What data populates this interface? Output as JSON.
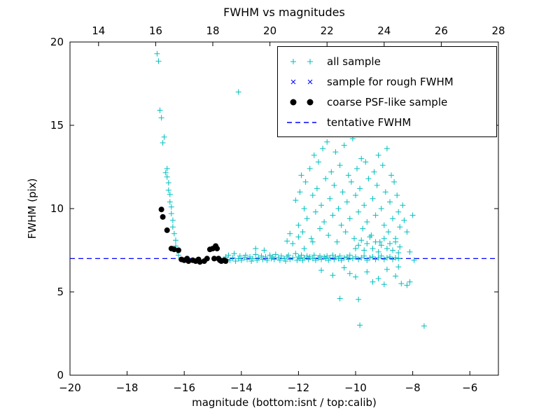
{
  "title": "FWHM vs magnitudes",
  "xlabel": "magnitude (bottom:isnt / top:calib)",
  "ylabel": "FWHM (pix)",
  "colors": {
    "cyan": "#00bfbf",
    "blue": "#0000ff",
    "black": "#000000",
    "frame": "#000000"
  },
  "legend": {
    "items": [
      {
        "label": "all sample",
        "marker": "plus",
        "color": "#00bfbf"
      },
      {
        "label": "sample for rough FWHM",
        "marker": "x",
        "color": "#0000ff"
      },
      {
        "label": "coarse PSF-like sample",
        "marker": "dot",
        "color": "#000000"
      },
      {
        "label": "tentative FWHM",
        "marker": "dashed-line",
        "color": "#0000ff"
      }
    ]
  },
  "chart_data": {
    "type": "scatter",
    "title": "FWHM vs magnitudes",
    "xlabel": "magnitude (bottom:isnt / top:calib)",
    "ylabel": "FWHM (pix)",
    "xlim": [
      -20,
      -5
    ],
    "ylim": [
      0,
      20
    ],
    "top_xlim": [
      13,
      28
    ],
    "x_ticks": [
      -20,
      -18,
      -16,
      -14,
      -12,
      -10,
      -8,
      -6
    ],
    "top_x_ticks": [
      14,
      16,
      18,
      20,
      22,
      24,
      26,
      28
    ],
    "y_ticks": [
      0,
      5,
      10,
      15,
      20
    ],
    "tentative_fwhm": 7.0,
    "grid": false,
    "legend_position": "upper right",
    "series": [
      {
        "name": "all sample",
        "marker": "+",
        "color": "#00bfbf",
        "points": [
          [
            -16.95,
            19.3
          ],
          [
            -16.9,
            18.85
          ],
          [
            -16.85,
            15.9
          ],
          [
            -16.8,
            15.45
          ],
          [
            -16.75,
            13.95
          ],
          [
            -16.7,
            14.3
          ],
          [
            -16.65,
            12.15
          ],
          [
            -16.6,
            12.4
          ],
          [
            -16.6,
            11.9
          ],
          [
            -16.55,
            11.55
          ],
          [
            -16.55,
            11.1
          ],
          [
            -16.5,
            10.85
          ],
          [
            -16.5,
            10.4
          ],
          [
            -16.45,
            10.1
          ],
          [
            -16.45,
            9.7
          ],
          [
            -16.4,
            9.3
          ],
          [
            -16.4,
            8.9
          ],
          [
            -16.35,
            8.5
          ],
          [
            -16.3,
            8.1
          ],
          [
            -16.3,
            7.75
          ],
          [
            -16.25,
            7.45
          ],
          [
            -16.2,
            7.2
          ],
          [
            -14.1,
            17.0
          ],
          [
            -14.55,
            7.1
          ],
          [
            -14.5,
            6.95
          ],
          [
            -14.45,
            7.2
          ],
          [
            -14.4,
            6.9
          ],
          [
            -14.3,
            7.05
          ],
          [
            -14.25,
            7.3
          ],
          [
            -14.2,
            6.85
          ],
          [
            -14.1,
            7.0
          ],
          [
            -14.05,
            7.15
          ],
          [
            -14.0,
            6.9
          ],
          [
            -13.9,
            7.05
          ],
          [
            -13.85,
            7.2
          ],
          [
            -13.8,
            6.95
          ],
          [
            -13.7,
            7.1
          ],
          [
            -13.65,
            6.85
          ],
          [
            -13.6,
            7.0
          ],
          [
            -13.5,
            7.6
          ],
          [
            -13.5,
            7.25
          ],
          [
            -13.45,
            6.9
          ],
          [
            -13.4,
            7.05
          ],
          [
            -13.3,
            7.15
          ],
          [
            -13.25,
            6.95
          ],
          [
            -13.2,
            7.5
          ],
          [
            -13.15,
            7.1
          ],
          [
            -13.1,
            6.9
          ],
          [
            -13.0,
            7.2
          ],
          [
            -12.95,
            7.0
          ],
          [
            -12.9,
            7.1
          ],
          [
            -12.85,
            6.95
          ],
          [
            -12.8,
            7.25
          ],
          [
            -12.7,
            7.05
          ],
          [
            -12.65,
            6.9
          ],
          [
            -12.6,
            7.15
          ],
          [
            -12.5,
            7.0
          ],
          [
            -12.45,
            6.85
          ],
          [
            -12.4,
            7.1
          ],
          [
            -12.35,
            7.2
          ],
          [
            -12.3,
            6.95
          ],
          [
            -12.2,
            7.9
          ],
          [
            -12.2,
            7.05
          ],
          [
            -12.1,
            7.3
          ],
          [
            -12.05,
            6.9
          ],
          [
            -12.0,
            8.3
          ],
          [
            -12.0,
            7.1
          ],
          [
            -11.95,
            7.0
          ],
          [
            -11.9,
            7.2
          ],
          [
            -11.85,
            6.9
          ],
          [
            -11.8,
            7.6
          ],
          [
            -11.8,
            7.05
          ],
          [
            -11.7,
            7.15
          ],
          [
            -11.65,
            6.95
          ],
          [
            -11.6,
            7.1
          ],
          [
            -11.5,
            8.0
          ],
          [
            -11.5,
            7.0
          ],
          [
            -11.45,
            7.2
          ],
          [
            -11.4,
            6.9
          ],
          [
            -11.3,
            7.05
          ],
          [
            -11.25,
            7.15
          ],
          [
            -11.2,
            6.95
          ],
          [
            -11.1,
            7.1
          ],
          [
            -11.05,
            7.0
          ],
          [
            -11.0,
            7.15
          ],
          [
            -10.95,
            6.9
          ],
          [
            -10.9,
            7.05
          ],
          [
            -10.8,
            7.2
          ],
          [
            -10.75,
            6.95
          ],
          [
            -10.7,
            7.1
          ],
          [
            -10.6,
            7.0
          ],
          [
            -10.55,
            7.15
          ],
          [
            -10.5,
            6.9
          ],
          [
            -10.4,
            7.05
          ],
          [
            -10.3,
            7.1
          ],
          [
            -10.25,
            6.95
          ],
          [
            -10.2,
            7.2
          ],
          [
            -10.1,
            7.0
          ],
          [
            -10.0,
            7.1
          ],
          [
            -9.9,
            6.95
          ],
          [
            -9.8,
            7.05
          ],
          [
            -9.7,
            7.15
          ],
          [
            -9.6,
            6.9
          ],
          [
            -9.5,
            7.05
          ],
          [
            -9.4,
            7.1
          ],
          [
            -9.3,
            6.95
          ],
          [
            -9.2,
            7.05
          ],
          [
            -9.1,
            7.15
          ],
          [
            -9.0,
            6.95
          ],
          [
            -8.9,
            7.05
          ],
          [
            -8.8,
            7.1
          ],
          [
            -8.7,
            6.95
          ],
          [
            -8.6,
            7.05
          ],
          [
            -8.5,
            7.0
          ],
          [
            -12.4,
            8.05
          ],
          [
            -12.3,
            8.5
          ],
          [
            -12.1,
            10.5
          ],
          [
            -12.0,
            9.0
          ],
          [
            -11.95,
            11.0
          ],
          [
            -11.9,
            12.0
          ],
          [
            -11.85,
            8.6
          ],
          [
            -11.8,
            10.0
          ],
          [
            -11.75,
            11.6
          ],
          [
            -11.7,
            9.4
          ],
          [
            -11.6,
            12.4
          ],
          [
            -11.55,
            8.2
          ],
          [
            -11.5,
            10.8
          ],
          [
            -11.45,
            13.2
          ],
          [
            -11.4,
            9.8
          ],
          [
            -11.35,
            11.2
          ],
          [
            -11.3,
            12.8
          ],
          [
            -11.25,
            8.8
          ],
          [
            -11.2,
            10.2
          ],
          [
            -11.15,
            13.6
          ],
          [
            -11.1,
            9.2
          ],
          [
            -11.05,
            11.8
          ],
          [
            -11.0,
            14.0
          ],
          [
            -10.95,
            8.4
          ],
          [
            -10.9,
            10.6
          ],
          [
            -10.85,
            12.2
          ],
          [
            -10.8,
            9.6
          ],
          [
            -10.75,
            11.4
          ],
          [
            -10.7,
            13.4
          ],
          [
            -10.65,
            8.0
          ],
          [
            -10.6,
            10.0
          ],
          [
            -10.55,
            12.6
          ],
          [
            -10.5,
            9.0
          ],
          [
            -10.45,
            11.0
          ],
          [
            -10.4,
            13.8
          ],
          [
            -10.35,
            8.6
          ],
          [
            -10.3,
            10.4
          ],
          [
            -10.25,
            12.0
          ],
          [
            -10.2,
            9.4
          ],
          [
            -10.15,
            11.6
          ],
          [
            -10.1,
            14.2
          ],
          [
            -10.05,
            8.2
          ],
          [
            -10.0,
            10.8
          ],
          [
            -9.95,
            12.4
          ],
          [
            -9.9,
            9.8
          ],
          [
            -9.85,
            11.2
          ],
          [
            -9.8,
            13.0
          ],
          [
            -9.75,
            8.8
          ],
          [
            -9.7,
            10.2
          ],
          [
            -9.65,
            12.8
          ],
          [
            -9.6,
            9.2
          ],
          [
            -9.55,
            11.8
          ],
          [
            -9.5,
            14.45
          ],
          [
            -9.45,
            8.4
          ],
          [
            -9.4,
            10.6
          ],
          [
            -9.35,
            12.2
          ],
          [
            -9.3,
            9.6
          ],
          [
            -9.25,
            11.4
          ],
          [
            -9.2,
            13.2
          ],
          [
            -9.15,
            8.0
          ],
          [
            -9.1,
            10.0
          ],
          [
            -9.05,
            12.6
          ],
          [
            -9.0,
            9.0
          ],
          [
            -8.95,
            11.0
          ],
          [
            -8.9,
            13.6
          ],
          [
            -8.85,
            8.6
          ],
          [
            -8.8,
            10.4
          ],
          [
            -8.75,
            12.0
          ],
          [
            -8.7,
            9.4
          ],
          [
            -8.65,
            11.6
          ],
          [
            -8.6,
            8.2
          ],
          [
            -8.55,
            10.8
          ],
          [
            -8.5,
            9.8
          ],
          [
            -8.45,
            8.9
          ],
          [
            -10.0,
            7.6
          ],
          [
            -9.9,
            7.8
          ],
          [
            -9.8,
            8.1
          ],
          [
            -9.7,
            7.5
          ],
          [
            -9.6,
            7.9
          ],
          [
            -9.5,
            8.3
          ],
          [
            -9.4,
            7.6
          ],
          [
            -9.3,
            8.0
          ],
          [
            -9.2,
            7.4
          ],
          [
            -9.1,
            7.8
          ],
          [
            -9.0,
            8.2
          ],
          [
            -8.9,
            7.6
          ],
          [
            -8.8,
            7.9
          ],
          [
            -8.7,
            7.5
          ],
          [
            -8.6,
            8.0
          ],
          [
            -8.5,
            7.35
          ],
          [
            -8.45,
            7.7
          ],
          [
            -11.2,
            6.3
          ],
          [
            -10.8,
            6.0
          ],
          [
            -10.4,
            6.45
          ],
          [
            -10.0,
            5.9
          ],
          [
            -9.6,
            6.2
          ],
          [
            -9.2,
            5.8
          ],
          [
            -8.9,
            6.35
          ],
          [
            -9.4,
            5.6
          ],
          [
            -10.2,
            6.1
          ],
          [
            -8.6,
            5.95
          ],
          [
            -8.5,
            6.5
          ],
          [
            -10.55,
            4.6
          ],
          [
            -9.9,
            4.55
          ],
          [
            -9.0,
            5.45
          ],
          [
            -8.4,
            5.5
          ],
          [
            -9.85,
            3.0
          ],
          [
            -7.6,
            2.95
          ],
          [
            -8.2,
            5.4
          ],
          [
            -8.1,
            5.6
          ],
          [
            -8.35,
            10.2
          ],
          [
            -8.3,
            9.3
          ],
          [
            -8.2,
            8.6
          ],
          [
            -8.1,
            7.4
          ],
          [
            -8.0,
            9.6
          ],
          [
            -7.95,
            6.9
          ]
        ]
      },
      {
        "name": "sample for rough FWHM",
        "marker": "x",
        "color": "#0000ff",
        "points": []
      },
      {
        "name": "coarse PSF-like sample",
        "marker": "circle",
        "color": "#000000",
        "points": [
          [
            -16.8,
            9.95
          ],
          [
            -16.75,
            9.5
          ],
          [
            -16.6,
            8.7
          ],
          [
            -16.45,
            7.6
          ],
          [
            -16.35,
            7.55
          ],
          [
            -16.2,
            7.5
          ],
          [
            -16.1,
            6.95
          ],
          [
            -16.0,
            6.9
          ],
          [
            -15.9,
            7.0
          ],
          [
            -15.85,
            6.85
          ],
          [
            -15.7,
            6.9
          ],
          [
            -15.6,
            6.85
          ],
          [
            -15.5,
            6.95
          ],
          [
            -15.45,
            6.8
          ],
          [
            -15.3,
            6.85
          ],
          [
            -15.2,
            7.0
          ],
          [
            -15.1,
            7.55
          ],
          [
            -15.0,
            7.6
          ],
          [
            -14.95,
            7.0
          ],
          [
            -14.9,
            7.75
          ],
          [
            -14.85,
            7.6
          ],
          [
            -14.8,
            7.0
          ],
          [
            -14.75,
            6.9
          ],
          [
            -14.7,
            6.85
          ],
          [
            -14.6,
            6.9
          ],
          [
            -14.55,
            6.85
          ]
        ]
      },
      {
        "name": "tentative FWHM",
        "type": "hline",
        "style": "dashed",
        "color": "#0000ff",
        "y": 7.0
      }
    ]
  }
}
